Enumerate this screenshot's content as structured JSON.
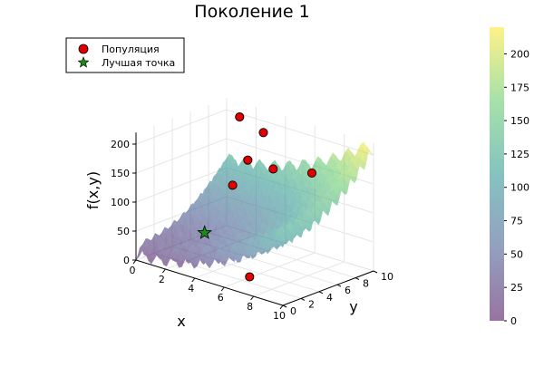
{
  "chart_data": {
    "type": "scatter",
    "title": "Поколение 1",
    "xlabel": "x",
    "ylabel": "y",
    "zlabel": "f(x,y)",
    "xlim": [
      0,
      10
    ],
    "ylim": [
      0,
      10
    ],
    "zlim": [
      0,
      220
    ],
    "xticks": [
      "0",
      "2",
      "4",
      "6",
      "8",
      "10"
    ],
    "yticks": [
      "0",
      "2",
      "4",
      "6",
      "8",
      "10"
    ],
    "zticks": [
      "0",
      "50",
      "100",
      "150",
      "200"
    ],
    "grid": true,
    "legend_placement": "top-left",
    "surface": {
      "description_formula": "f(x,y) = 20 + x^2 - 10cos(2πx) + y^2 - 10cos(2πy)",
      "colormap": "viridis",
      "alpha": 0.5
    },
    "colorbar": {
      "range": [
        0,
        220
      ],
      "ticks": [
        "0",
        "25",
        "50",
        "75",
        "100",
        "125",
        "150",
        "175",
        "200"
      ]
    },
    "series": [
      {
        "name": "Популяция",
        "marker": "circle",
        "color": "#e00000",
        "points": [
          {
            "x": 1.5,
            "y": 9.0,
            "z": 205
          },
          {
            "x": 2.5,
            "y": 10.0,
            "z": 180
          },
          {
            "x": 2.8,
            "y": 7.8,
            "z": 148
          },
          {
            "x": 3.0,
            "y": 5.8,
            "z": 118
          },
          {
            "x": 3.6,
            "y": 9.3,
            "z": 130
          },
          {
            "x": 6.5,
            "y": 2.0,
            "z": 10
          },
          {
            "x": 5.8,
            "y": 10.0,
            "z": 136
          }
        ]
      },
      {
        "name": "Лучшая точка",
        "marker": "star",
        "color": "#1a8a1a",
        "points": [
          {
            "x": 4.3,
            "y": 0.6,
            "z": 77
          }
        ]
      }
    ]
  },
  "colors": {
    "title": "#000000",
    "axis": "#000000",
    "grid": "#e6e6e6",
    "legend_border": "#000000"
  }
}
